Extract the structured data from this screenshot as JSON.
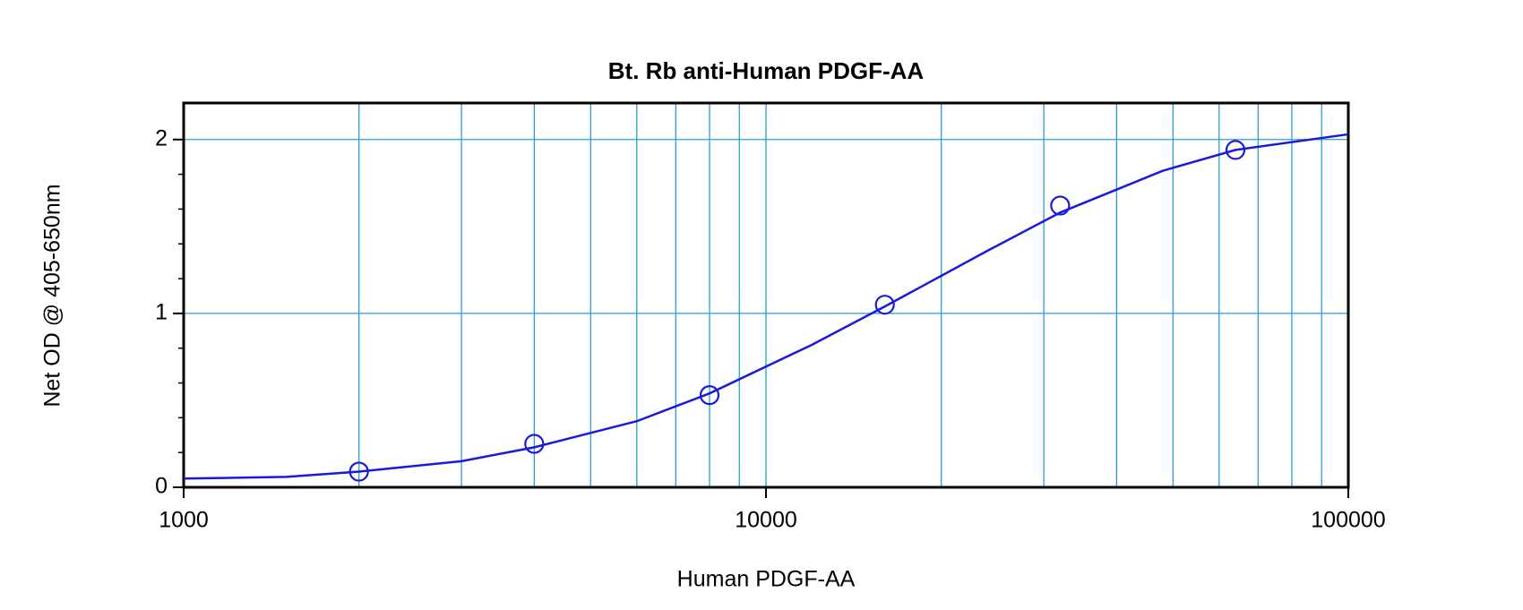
{
  "chart_data": {
    "type": "scatter",
    "title": "Bt. Rb anti-Human PDGF-AA",
    "x_label": "Human PDGF-AA",
    "y_label": "Net OD @ 405-650nm",
    "xscale": "log",
    "xlim": [
      1000,
      100000
    ],
    "xticks": [
      1000,
      10000,
      100000
    ],
    "xminor": [
      2000,
      3000,
      4000,
      5000,
      6000,
      7000,
      8000,
      9000,
      20000,
      30000,
      40000,
      50000,
      60000,
      70000,
      80000,
      90000
    ],
    "ylim": [
      0,
      2.21
    ],
    "yticks": [
      0,
      1,
      2
    ],
    "yminor": [
      0.2,
      0.4,
      0.6,
      0.8,
      1.2,
      1.4,
      1.6,
      1.8
    ],
    "grid": true,
    "grid_color": "#2a9fd6",
    "series": [
      {
        "style": "markers",
        "color": "#1a1adb",
        "x": [
          2000,
          4000,
          8000,
          16000,
          32000,
          64000
        ],
        "values": [
          0.09,
          0.25,
          0.53,
          1.05,
          1.62,
          1.94
        ]
      },
      {
        "style": "line",
        "color": "#1a1adb",
        "x": [
          1000,
          1500,
          2000,
          3000,
          4000,
          6000,
          8000,
          12000,
          16000,
          24000,
          32000,
          48000,
          64000,
          100000
        ],
        "values": [
          0.05,
          0.06,
          0.09,
          0.15,
          0.23,
          0.38,
          0.54,
          0.82,
          1.04,
          1.36,
          1.58,
          1.82,
          1.94,
          2.03
        ]
      }
    ]
  }
}
